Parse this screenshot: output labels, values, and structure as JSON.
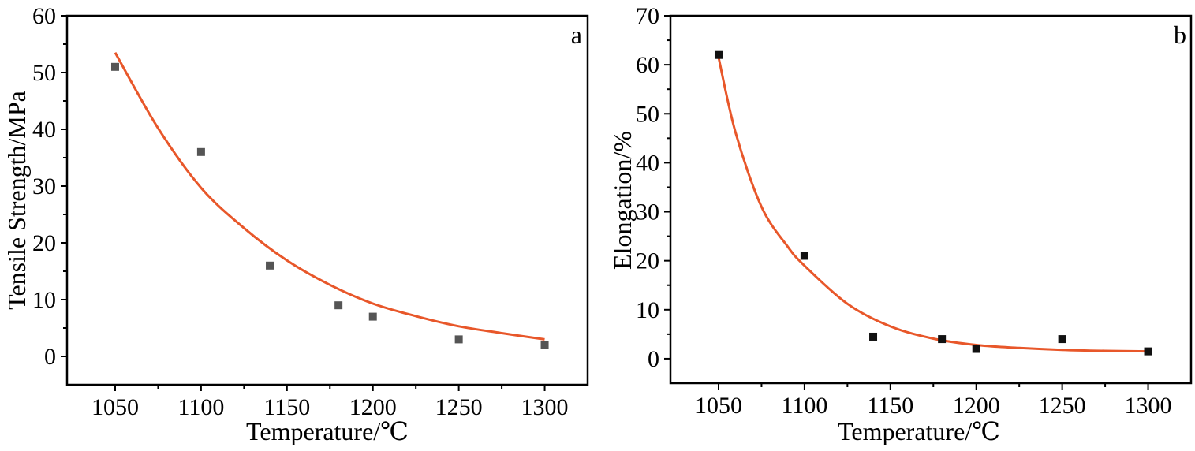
{
  "chart_data": [
    {
      "type": "scatter",
      "panel_label": "a",
      "xlabel": "Temperature/℃",
      "ylabel": "Tensile Strength/MPa",
      "xlim": [
        1022,
        1325
      ],
      "ylim": [
        -5,
        60
      ],
      "xticks": [
        "1050",
        "1100",
        "1150",
        "1200",
        "1250",
        "1300"
      ],
      "yticks": [
        "0",
        "10",
        "20",
        "30",
        "40",
        "50",
        "60"
      ],
      "marker_color": "#555555",
      "fit_color": "#e8572a",
      "points": {
        "x": [
          1050,
          1100,
          1140,
          1180,
          1200,
          1250,
          1300
        ],
        "y": [
          51,
          36,
          16,
          9,
          7,
          3,
          2
        ]
      },
      "fit_curve": {
        "x": [
          1050,
          1075,
          1100,
          1125,
          1150,
          1175,
          1200,
          1225,
          1250,
          1275,
          1300
        ],
        "y": [
          53.5,
          40.2,
          29.7,
          22.6,
          16.9,
          12.6,
          9.3,
          7.1,
          5.3,
          4.1,
          3.0
        ]
      }
    },
    {
      "type": "scatter",
      "panel_label": "b",
      "xlabel": "Temperature/℃",
      "ylabel": "Elongation/%",
      "xlim": [
        1022,
        1325
      ],
      "ylim": [
        -5,
        70
      ],
      "xticks": [
        "1050",
        "1100",
        "1150",
        "1200",
        "1250",
        "1300"
      ],
      "yticks": [
        "0",
        "10",
        "20",
        "30",
        "40",
        "50",
        "60",
        "70"
      ],
      "marker_color": "#111111",
      "fit_color": "#e8572a",
      "points": {
        "x": [
          1050,
          1100,
          1140,
          1180,
          1200,
          1250,
          1300
        ],
        "y": [
          62,
          21,
          4.5,
          4,
          2,
          4,
          1.5
        ]
      },
      "fit_curve": {
        "x": [
          1050,
          1060,
          1075,
          1090,
          1100,
          1125,
          1150,
          1175,
          1200,
          1225,
          1250,
          1275,
          1300
        ],
        "y": [
          61.5,
          46.0,
          31.0,
          23.0,
          19.0,
          11.2,
          6.6,
          4.1,
          2.8,
          2.2,
          1.8,
          1.6,
          1.5
        ]
      }
    }
  ]
}
